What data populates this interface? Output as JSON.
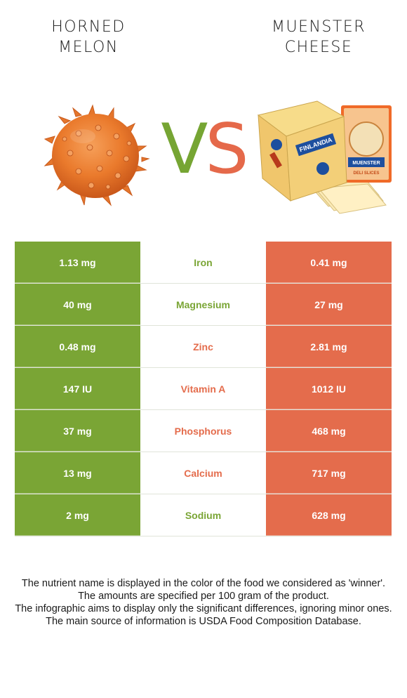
{
  "foods": {
    "left": {
      "title_lines": [
        "HORNED",
        "MELON"
      ],
      "color": "#7aa535",
      "image_icon": "horned-melon-image"
    },
    "right": {
      "title_lines": [
        "MUENSTER",
        "CHEESE"
      ],
      "color": "#e46c4c",
      "image_icon": "muenster-cheese-image"
    }
  },
  "vs": {
    "v": "V",
    "s": "S"
  },
  "nutrients": [
    {
      "name": "Iron",
      "left": "1.13 mg",
      "right": "0.41 mg",
      "winner": "left",
      "winner_color": "#7aa535"
    },
    {
      "name": "Magnesium",
      "left": "40 mg",
      "right": "27 mg",
      "winner": "left",
      "winner_color": "#7aa535"
    },
    {
      "name": "Zinc",
      "left": "0.48 mg",
      "right": "2.81 mg",
      "winner": "right",
      "winner_color": "#e46c4c"
    },
    {
      "name": "Vitamin A",
      "left": "147 IU",
      "right": "1012 IU",
      "winner": "right",
      "winner_color": "#e46c4c"
    },
    {
      "name": "Phosphorus",
      "left": "37 mg",
      "right": "468 mg",
      "winner": "right",
      "winner_color": "#e46c4c"
    },
    {
      "name": "Calcium",
      "left": "13 mg",
      "right": "717 mg",
      "winner": "right",
      "winner_color": "#e46c4c"
    },
    {
      "name": "Sodium",
      "left": "2 mg",
      "right": "628 mg",
      "winner": "left",
      "winner_color": "#7aa535"
    }
  ],
  "footer": {
    "line1": "The nutrient name is displayed in the color of the food we considered as 'winner'.",
    "line2": "The amounts are specified per 100 gram of the product.",
    "line3": "The infographic aims to display only the significant differences, ignoring minor ones.",
    "line4": "The main source of information is USDA Food Composition Database."
  },
  "cheese_label": {
    "brand": "FINLANDIA",
    "product": "MUENSTER",
    "variant": "DELI SLICES"
  }
}
